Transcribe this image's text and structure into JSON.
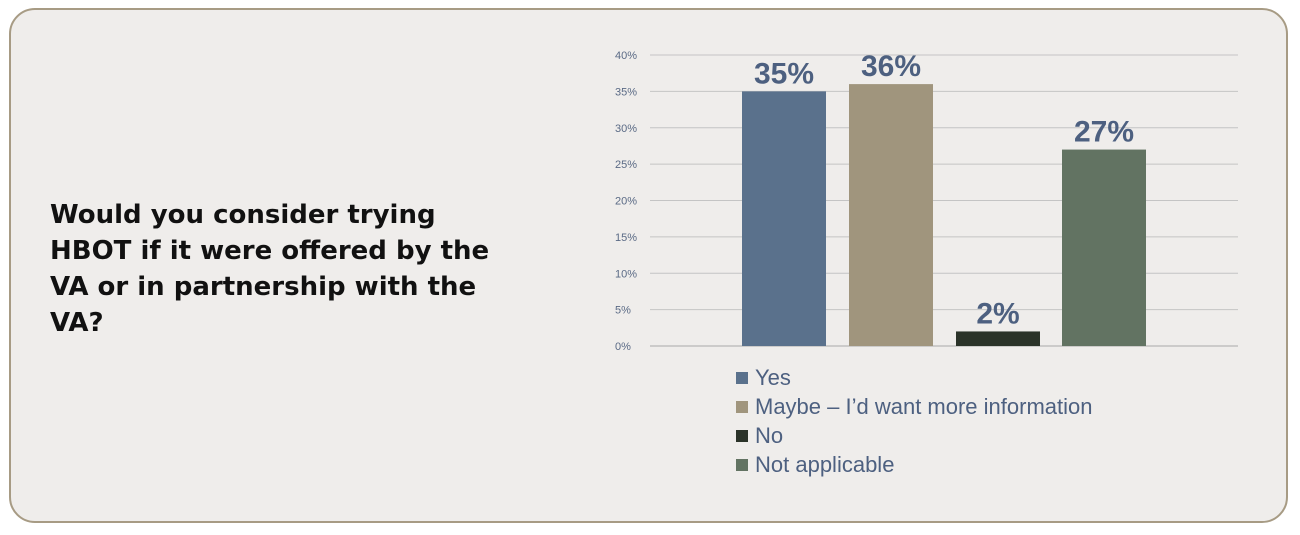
{
  "question": "Would you consider trying HBOT if it were offered by the VA or in partnership with the VA?",
  "chart_data": {
    "type": "bar",
    "categories": [
      "Yes",
      "Maybe – I’d want more information",
      "No",
      "Not applicable"
    ],
    "values": [
      35,
      36,
      2,
      27
    ],
    "data_labels": [
      "35%",
      "36%",
      "2%",
      "27%"
    ],
    "colors": [
      "#5a718c",
      "#a0957d",
      "#2b3329",
      "#627362"
    ],
    "ylim": [
      0,
      40
    ],
    "yticks": [
      0,
      5,
      10,
      15,
      20,
      25,
      30,
      35,
      40
    ],
    "ytick_labels": [
      "0%",
      "5%",
      "10%",
      "15%",
      "20%",
      "25%",
      "30%",
      "35%",
      "40%"
    ],
    "title": "",
    "xlabel": "",
    "ylabel": "",
    "grid": true,
    "legend_position": "bottom",
    "legend": [
      {
        "label": "Yes",
        "color": "#5a718c"
      },
      {
        "label": "Maybe – I’d want more information",
        "color": "#a0957d"
      },
      {
        "label": "No",
        "color": "#2b3329"
      },
      {
        "label": "Not applicable",
        "color": "#627362"
      }
    ]
  }
}
